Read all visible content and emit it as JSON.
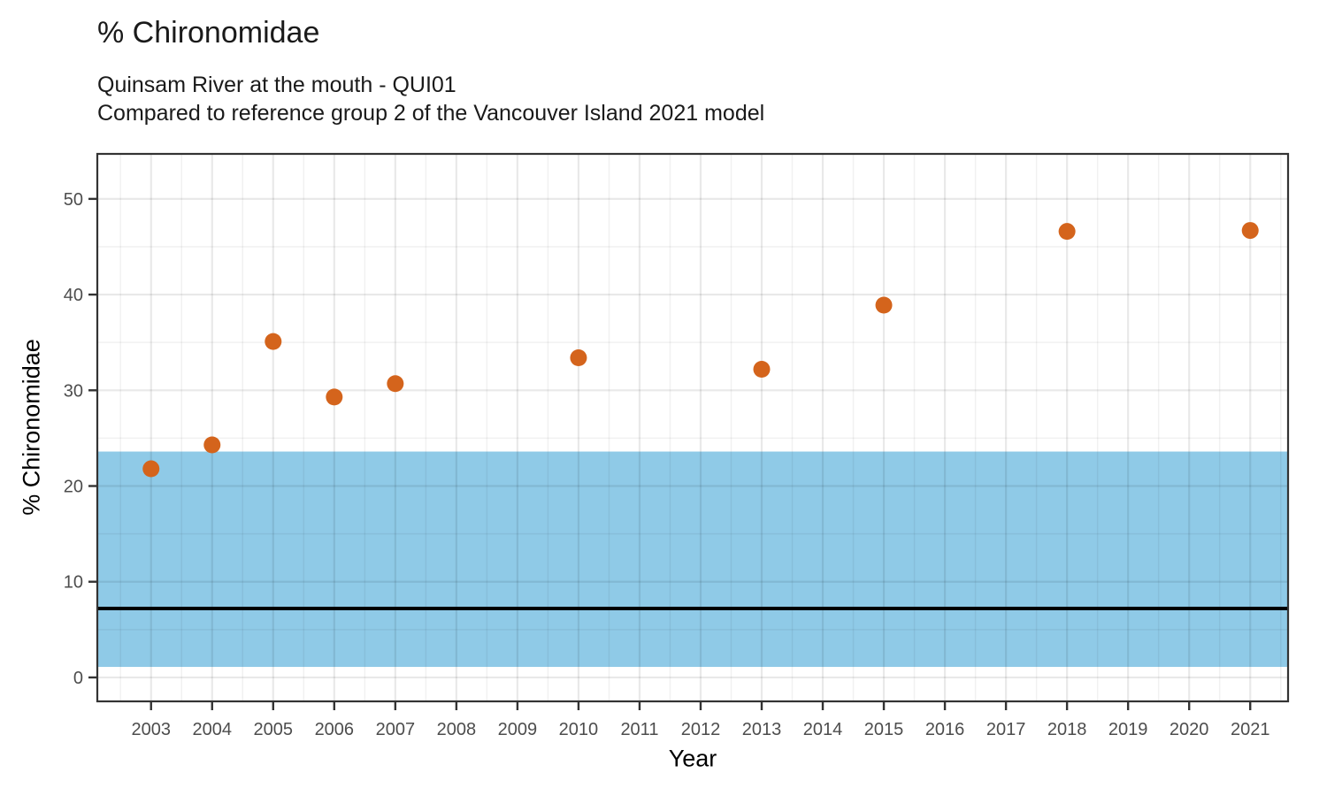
{
  "chart_data": {
    "type": "scatter",
    "title": "% Chironomidae",
    "subtitle_line1": "Quinsam River at the mouth - QUI01",
    "subtitle_line2": "Compared to reference group 2 of the Vancouver Island 2021 model",
    "xlabel": "Year",
    "ylabel": "% Chironomidae",
    "x_ticks": [
      2003,
      2004,
      2005,
      2006,
      2007,
      2008,
      2009,
      2010,
      2011,
      2012,
      2013,
      2014,
      2015,
      2016,
      2017,
      2018,
      2019,
      2020,
      2021
    ],
    "y_ticks": [
      0,
      10,
      20,
      30,
      40,
      50
    ],
    "xlim": [
      2002.12,
      2021.62
    ],
    "ylim": [
      -2.5,
      54.7
    ],
    "grid": {
      "major": true,
      "minor": true,
      "legend": "none"
    },
    "points": [
      [
        2003,
        21.8
      ],
      [
        2004,
        24.3
      ],
      [
        2005,
        35.1
      ],
      [
        2006,
        29.3
      ],
      [
        2007,
        30.7
      ],
      [
        2010,
        33.4
      ],
      [
        2013,
        32.2
      ],
      [
        2015,
        38.9
      ],
      [
        2018,
        46.6
      ],
      [
        2021,
        46.7
      ]
    ],
    "point_color": "#D4641C",
    "point_radius": 9.5,
    "reference_band": {
      "ymin": 1.1,
      "ymax": 23.6,
      "color": "#8FCAE7"
    },
    "reference_line": {
      "y": 7.2,
      "color": "#000000"
    }
  }
}
